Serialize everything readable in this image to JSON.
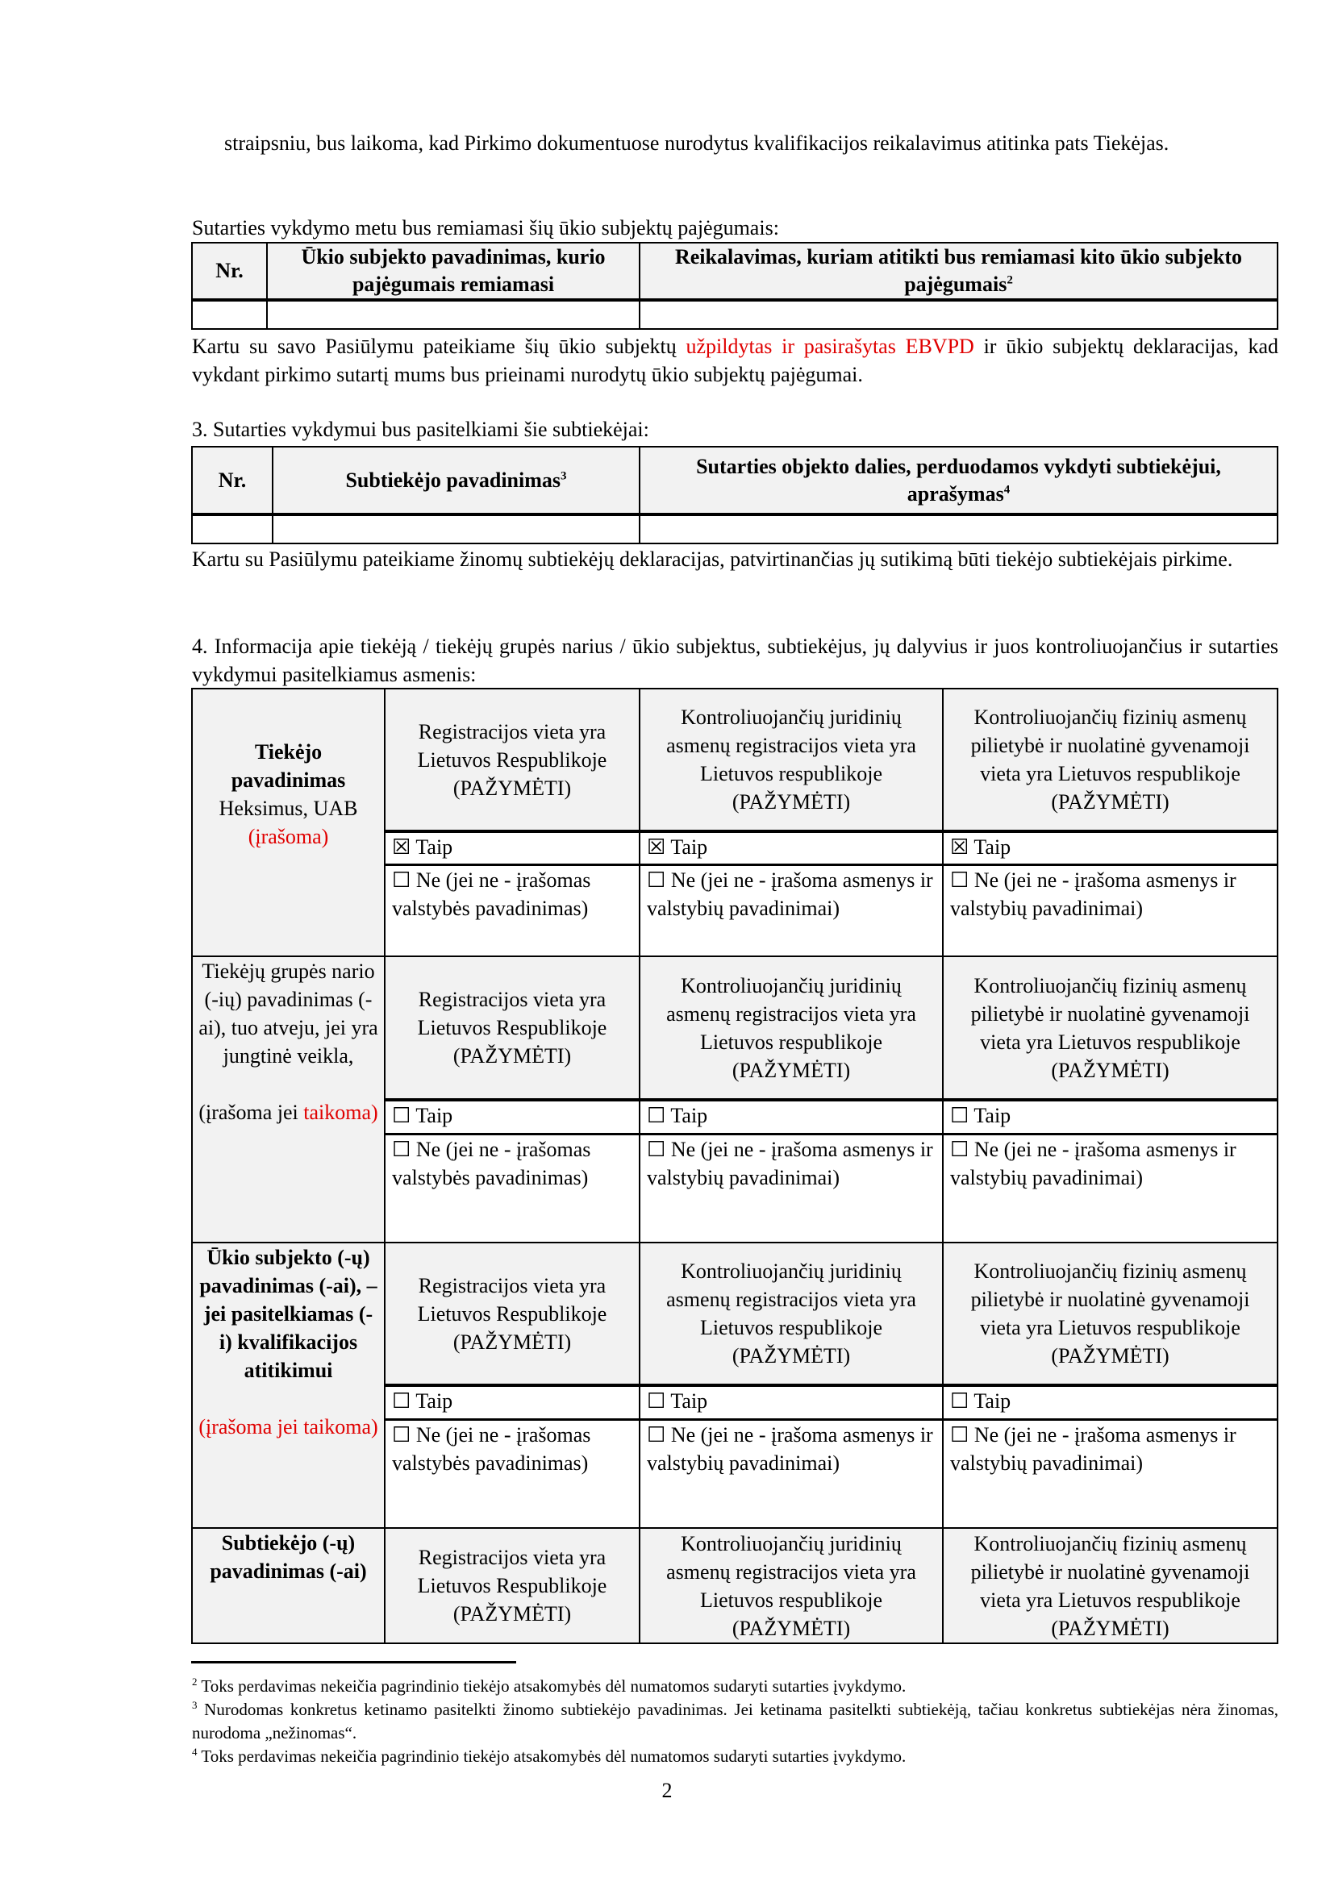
{
  "intro": {
    "text": "straipsniu, bus laikoma, kad Pirkimo dokumentuose nurodytus kvalifikacijos reikalavimus atitinka pats Tiekėjas."
  },
  "capacity": {
    "heading": "Sutarties vykdymo metu bus remiamasi šių ūkio subjektų pajėgumais:",
    "headers": [
      "Nr.",
      "Ūkio subjekto pavadinimas, kurio pajėgumais remiamasi",
      "Reikalavimas, kuriam atitikti bus remiamasi kito ūkio subjekto pajėgumais"
    ],
    "header_sup": "2",
    "note_before": "Kartu su savo Pasiūlymu pateikiame šių ūkio subjektų ",
    "note_red": "užpildytas ir pasirašytas EBVPD",
    "note_after": " ir ūkio subjektų deklaracijas, kad vykdant pirkimo sutartį mums bus prieinami nurodytų ūkio subjektų pajėgumai."
  },
  "subcontractors": {
    "heading": "3.  Sutarties vykdymui bus pasitelkiami šie subtiekėjai:",
    "headers": [
      "Nr.",
      "Subtiekėjo pavadinimas",
      "Sutarties objekto dalies, perduodamos vykdyti subtiekėjui, aprašymas"
    ],
    "header_sups": [
      "3",
      "4"
    ],
    "note": "Kartu su Pasiūlymu pateikiame žinomų subtiekėjų deklaracijas, patvirtinančias jų sutikimą būti tiekėjo subtiekėjais pirkime."
  },
  "info": {
    "heading": "4. Informacija apie tiekėją / tiekėjų grupės narius / ūkio subjektus, subtiekėjus, jų dalyvius ir juos kontroliuojančius ir sutarties vykdymui pasitelkiamus asmenis:",
    "column_headers": [
      "Registracijos vieta yra Lietuvos Respublikoje (PAŽYMĖTI)",
      "Kontroliuojančių juridinių asmenų registracijos vieta yra Lietuvos respublikoje (PAŽYMĖTI)",
      "Kontroliuojančių fizinių asmenų pilietybė ir nuolatinė gyvenamoji vieta yra Lietuvos respublikoje (PAŽYMĖTI)"
    ],
    "yes_label": "Taip",
    "no_labels": [
      "Ne (jei ne - įrašomas valstybės pavadinimas)",
      "Ne (jei ne - įrašoma asmenys ir valstybių pavadinimai)",
      "Ne (jei ne - įrašoma asmenys ir valstybių pavadinimai)"
    ],
    "checkbox_checked": "☒",
    "checkbox_empty": "☐",
    "groups": [
      {
        "title": "Tiekėjo pavadinimas",
        "value": "Heksimus, UAB",
        "note": "",
        "note_red": "(įrašoma)",
        "yes_checked": [
          true,
          true,
          true
        ]
      },
      {
        "title": "Tiekėjų grupės nario (-ių) pavadinimas (-ai), tuo atveju, jei yra jungtinė veikla,",
        "value": "",
        "note": "(įrašoma jei",
        "note_red": "taikoma)",
        "yes_checked": [
          false,
          false,
          false
        ]
      },
      {
        "title": "Ūkio subjekto (-ų) pavadinimas (-ai), – jei pasitelkiamas (-i) kvalifikacijos atitikimui",
        "value": "",
        "note": "",
        "note_red": "(įrašoma jei taikoma)",
        "yes_checked": [
          false,
          false,
          false
        ]
      },
      {
        "title": "Subtiekėjo (-ų) pavadinimas (-ai)",
        "value": "",
        "note": "",
        "note_red": "",
        "yes_checked": [
          false,
          false,
          false
        ]
      }
    ]
  },
  "footnotes": [
    {
      "num": "2",
      "text": "Toks perdavimas nekeičia pagrindinio tiekėjo atsakomybės dėl numatomos sudaryti sutarties įvykdymo."
    },
    {
      "num": "3",
      "text": "Nurodomas konkretus ketinamo pasitelkti žinomo subtiekėjo pavadinimas. Jei ketinama pasitelkti subtiekėją, tačiau konkretus subtiekėjas nėra žinomas, nurodoma „nežinomas“."
    },
    {
      "num": "4",
      "text": "Toks perdavimas nekeičia pagrindinio tiekėjo atsakomybės dėl numatomos sudaryti sutarties įvykdymo."
    }
  ],
  "page_number": "2"
}
